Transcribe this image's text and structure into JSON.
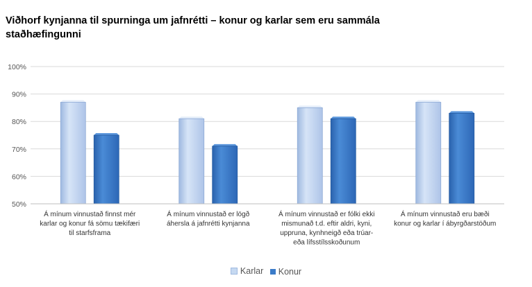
{
  "chart_data": {
    "type": "bar",
    "title": "Viðhorf kynjanna  til spurninga  um jafnrétti – konur og karlar sem eru sammála staðhæfingunni",
    "categories": [
      [
        "Á mínum vinnustað finnst mér",
        "karlar og konur fá sömu tækifæri",
        "til starfsframa"
      ],
      [
        "Á mínum vinnustað er lögð",
        "áhersla á jafnrétti kynjanna"
      ],
      [
        "Á mínum vinnustað er fólki ekki",
        "mismunað t.d. eftir aldri, kyni,",
        "uppruna, kynhneigð eða trúar-",
        "eða lífsstílsskoðunum"
      ],
      [
        "Á mínum vinnustað eru bæði",
        "konur og karlar í ábyrgðarstöðum"
      ]
    ],
    "series": [
      {
        "name": "Karlar",
        "values": [
          87,
          81,
          85,
          87
        ],
        "color": "#c6d9f1"
      },
      {
        "name": "Konur",
        "values": [
          75,
          71,
          81,
          83
        ],
        "color": "#3a7bc8"
      }
    ],
    "ylim": [
      50,
      100
    ],
    "yticks": [
      "50%",
      "60%",
      "70%",
      "80%",
      "90%",
      "100%"
    ],
    "ytick_values": [
      50,
      60,
      70,
      80,
      90,
      100
    ],
    "grid": true,
    "legend_position": "bottom"
  }
}
